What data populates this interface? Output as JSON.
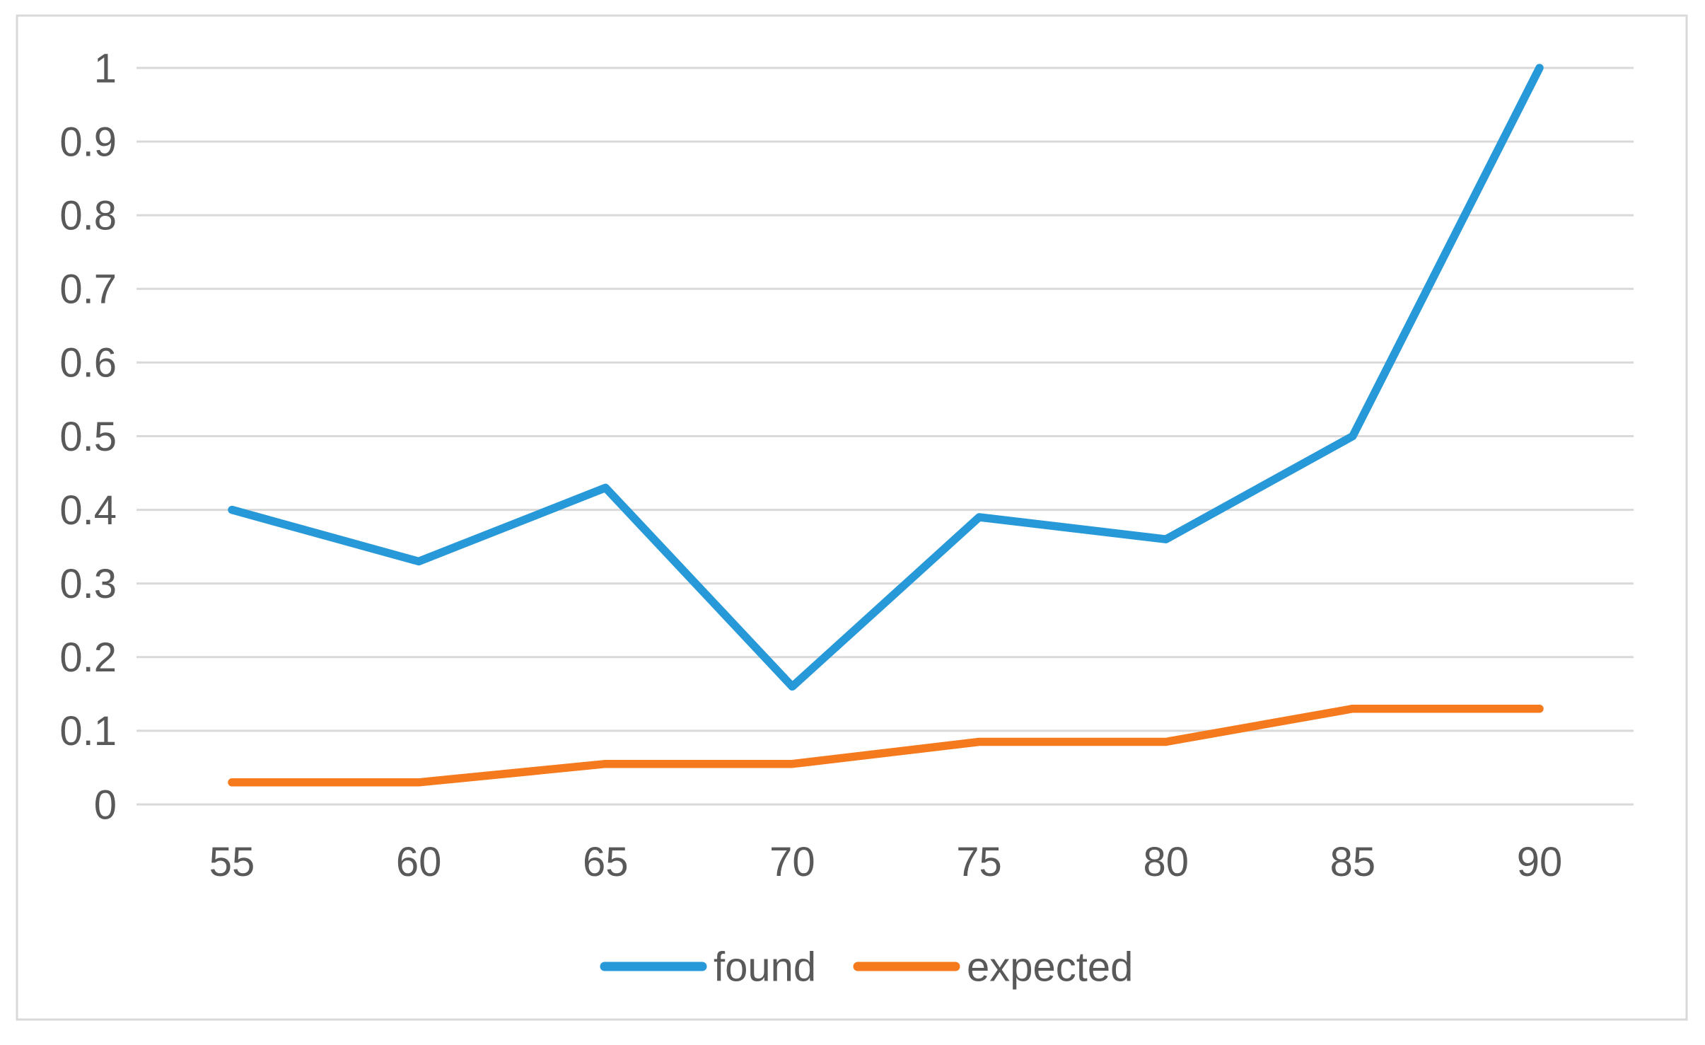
{
  "chart_data": {
    "type": "line",
    "categories": [
      "55",
      "60",
      "65",
      "70",
      "75",
      "80",
      "85",
      "90"
    ],
    "series": [
      {
        "name": "found",
        "color": "#2798D8",
        "values": [
          0.4,
          0.33,
          0.43,
          0.16,
          0.39,
          0.36,
          0.5,
          1.0
        ]
      },
      {
        "name": "expected",
        "color": "#F5791D",
        "values": [
          0.03,
          0.03,
          0.055,
          0.055,
          0.085,
          0.085,
          0.13,
          0.13
        ]
      }
    ],
    "ylim": [
      0,
      1
    ],
    "ytick_step": 0.1,
    "ytick_labels": [
      "0",
      "0.1",
      "0.2",
      "0.3",
      "0.4",
      "0.5",
      "0.6",
      "0.7",
      "0.8",
      "0.9",
      "1"
    ],
    "grid": "horizontal",
    "legend_position": "bottom",
    "styles": {
      "grid_color": "#D9D9D9",
      "frame_border_color": "#D9D9D9",
      "label_color": "#595959",
      "background": "#FFFFFF"
    }
  }
}
